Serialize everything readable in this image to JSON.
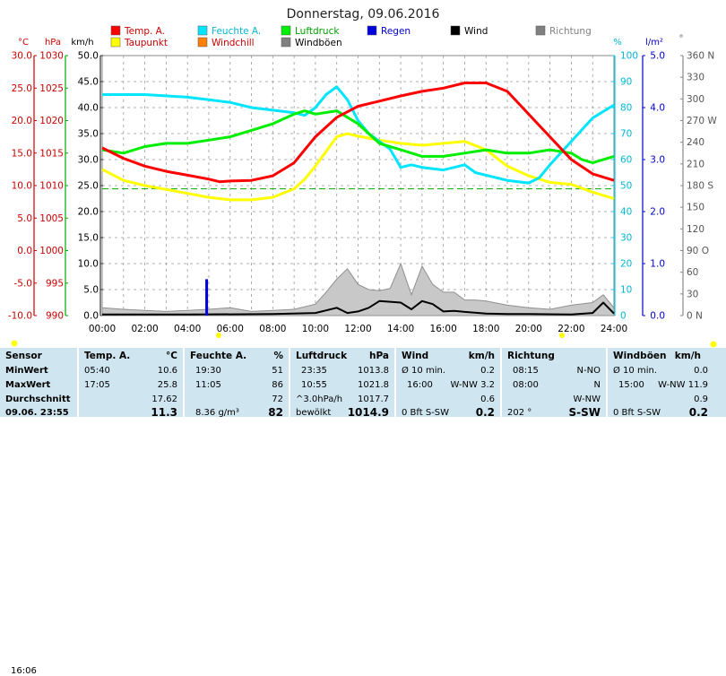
{
  "title": "Donnerstag, 09.06.2016",
  "now_time": "16:06",
  "legend": [
    {
      "label": "Temp. A.",
      "color": "#ff0000",
      "text_color": "#cc0000"
    },
    {
      "label": "Feuchte A.",
      "color": "#00e5ff",
      "text_color": "#00b8d4"
    },
    {
      "label": "Luftdruck",
      "color": "#00ee00",
      "text_color": "#00a000"
    },
    {
      "label": "Regen",
      "color": "#0000dd",
      "text_color": "#0000cc"
    },
    {
      "label": "Wind",
      "color": "#000000",
      "text_color": "#000000"
    },
    {
      "label": "Richtung",
      "color": "#808080",
      "text_color": "#808080"
    },
    {
      "label": "Taupunkt",
      "color": "#ffff00",
      "text_color": "#cc0000"
    },
    {
      "label": "Windchill",
      "color": "#ff8000",
      "text_color": "#cc0000"
    },
    {
      "label": "Windböen",
      "color": "#808080",
      "text_color": "#000000"
    }
  ],
  "unit_labels": {
    "temp": "°C",
    "pressure": "hPa",
    "wind": "km/h",
    "humidity": "%",
    "rain": "l/m²",
    "direction": "°"
  },
  "chart_data": {
    "type": "line",
    "x_ticks": [
      "00:00",
      "02:00",
      "04:00",
      "06:00",
      "08:00",
      "10:00",
      "12:00",
      "14:00",
      "16:00",
      "18:00",
      "20:00",
      "22:00",
      "24:00"
    ],
    "axes": {
      "temp": {
        "range": [
          -10,
          30
        ],
        "ticks": [
          "30.0",
          "25.0",
          "20.0",
          "15.0",
          "10.0",
          "5.0",
          "0.0",
          "-5.0",
          "-10.0"
        ]
      },
      "pressure": {
        "range": [
          990,
          1030
        ],
        "ticks": [
          "1030",
          "1025",
          "1020",
          "1015",
          "1010",
          "1005",
          "1000",
          "995",
          "990"
        ]
      },
      "wind": {
        "range": [
          0,
          50
        ],
        "ticks": [
          "50.0",
          "45.0",
          "40.0",
          "35.0",
          "30.0",
          "25.0",
          "20.0",
          "15.0",
          "10.0",
          "5.0",
          "0.0"
        ]
      },
      "humidity": {
        "range": [
          0,
          100
        ],
        "ticks": [
          "100",
          "90",
          "80",
          "70",
          "60",
          "50",
          "40",
          "30",
          "20",
          "10",
          "0"
        ]
      },
      "rain": {
        "range": [
          0,
          5
        ],
        "ticks": [
          "5.0",
          "4.0",
          "3.0",
          "2.0",
          "1.0",
          "0.0"
        ]
      },
      "direction": {
        "range": [
          0,
          360
        ],
        "ticks": [
          "360 N",
          "330",
          "300",
          "270 W",
          "240",
          "210",
          "180 S",
          "150",
          "120",
          "90 O",
          "60",
          "30",
          "0 N"
        ]
      }
    },
    "series": [
      {
        "name": "Temp. A.",
        "axis": "temp",
        "color": "#ff0000",
        "x": [
          0,
          1,
          2,
          3,
          4,
          5,
          5.5,
          6,
          7,
          8,
          9,
          10,
          11,
          12,
          13,
          14,
          15,
          16,
          17,
          18,
          19,
          20,
          21,
          22,
          23,
          24
        ],
        "y": [
          15.8,
          14.2,
          13.0,
          12.2,
          11.6,
          11.0,
          10.6,
          10.7,
          10.8,
          11.5,
          13.5,
          17.5,
          20.5,
          22.2,
          23.0,
          23.8,
          24.5,
          25.0,
          25.8,
          25.8,
          24.5,
          21.0,
          17.5,
          14.0,
          11.8,
          10.8
        ]
      },
      {
        "name": "Taupunkt",
        "axis": "temp",
        "color": "#ffff00",
        "x": [
          0,
          1,
          2,
          3,
          4,
          5,
          6,
          7,
          8,
          9,
          9.5,
          10,
          11,
          11.5,
          12,
          13,
          14,
          15,
          16,
          17,
          18,
          19,
          20,
          21,
          22,
          23,
          24
        ],
        "y": [
          12.5,
          10.8,
          10.0,
          9.4,
          8.8,
          8.2,
          7.8,
          7.8,
          8.2,
          9.5,
          11.0,
          13.0,
          17.5,
          18.0,
          17.6,
          17.0,
          16.5,
          16.2,
          16.5,
          16.8,
          15.5,
          13.0,
          11.5,
          10.5,
          10.2,
          9.0,
          8.0
        ]
      },
      {
        "name": "Feuchte A.",
        "axis": "humidity",
        "color": "#00e5ff",
        "x": [
          0,
          2,
          4,
          5,
          6,
          7,
          8,
          9,
          9.5,
          10,
          10.5,
          11,
          11.5,
          12,
          12.5,
          13,
          13.5,
          14,
          14.5,
          15,
          16,
          17,
          17.5,
          18,
          19,
          20,
          20.5,
          21,
          22,
          23,
          24
        ],
        "y": [
          85,
          85,
          84,
          83,
          82,
          80,
          79,
          78,
          77,
          80,
          85,
          88,
          83,
          75,
          70,
          67,
          64,
          57,
          58,
          57,
          56,
          58,
          55,
          54,
          52,
          51,
          53,
          58,
          67,
          76,
          81
        ]
      },
      {
        "name": "Luftdruck",
        "axis": "pressure",
        "color": "#00ee00",
        "x": [
          0,
          1,
          2,
          3,
          4,
          5,
          6,
          7,
          8,
          9,
          9.5,
          10,
          11,
          12,
          13,
          14,
          15,
          16,
          17,
          18,
          19,
          20,
          21,
          22,
          22.5,
          23,
          24
        ],
        "y": [
          1015.5,
          1015.0,
          1016.0,
          1016.5,
          1016.5,
          1017.0,
          1017.5,
          1018.5,
          1019.5,
          1021.0,
          1021.5,
          1021.0,
          1021.5,
          1019.5,
          1016.5,
          1015.5,
          1014.5,
          1014.5,
          1015.0,
          1015.5,
          1015.0,
          1015.0,
          1015.5,
          1015.0,
          1014.0,
          1013.5,
          1014.5
        ]
      },
      {
        "name": "Wind",
        "axis": "wind",
        "color": "#000000",
        "x": [
          0,
          4,
          8,
          10,
          11,
          11.5,
          12,
          12.5,
          13,
          14,
          14.5,
          15,
          15.5,
          16,
          16.5,
          17,
          18,
          19,
          20,
          22,
          23,
          23.5,
          24
        ],
        "y": [
          0.2,
          0.2,
          0.3,
          0.5,
          1.5,
          0.5,
          0.8,
          1.5,
          2.8,
          2.5,
          1.2,
          2.8,
          2.2,
          0.8,
          0.9,
          0.7,
          0.4,
          0.3,
          0.3,
          0.2,
          0.5,
          2.5,
          0.4
        ]
      },
      {
        "name": "Windböen",
        "axis": "wind",
        "color": "#808080",
        "x": [
          0,
          1,
          2,
          3,
          4,
          5,
          6,
          7,
          8,
          9,
          10,
          10.5,
          11,
          11.5,
          12,
          12.5,
          13,
          13.5,
          14,
          14.5,
          15,
          15.5,
          16,
          16.5,
          17,
          17.5,
          18,
          19,
          20,
          21,
          22,
          23,
          23.5,
          24
        ],
        "y": [
          1.5,
          1.2,
          1.0,
          0.8,
          1.0,
          1.2,
          1.5,
          0.8,
          1.0,
          1.2,
          2.2,
          4.5,
          7.0,
          9.0,
          6.0,
          5.0,
          4.8,
          5.2,
          10.0,
          4.0,
          9.5,
          6.0,
          4.5,
          4.5,
          3.0,
          3.0,
          2.8,
          2.0,
          1.5,
          1.2,
          2.0,
          2.5,
          4.0,
          1.5
        ]
      },
      {
        "name": "Regen",
        "axis": "rain",
        "color": "#0000dd",
        "x": [
          4.9
        ],
        "y": [
          0.7
        ]
      }
    ],
    "reference_line": {
      "axis": "temp",
      "value": 9.5,
      "color": "#00aa00"
    }
  },
  "table": {
    "sensor": {
      "header": "Sensor",
      "rows": [
        "MinWert",
        "MaxWert",
        "Durchschnitt",
        "09.06. 23:55"
      ]
    },
    "temp": {
      "header": "Temp. A.",
      "unit": "°C",
      "rows": [
        [
          "05:40",
          "10.6"
        ],
        [
          "17:05",
          "25.8"
        ],
        [
          "",
          "17.62"
        ],
        [
          "",
          "11.3"
        ]
      ]
    },
    "humidity": {
      "header": "Feuchte A.",
      "unit": "%",
      "rows": [
        [
          "19:30",
          "51"
        ],
        [
          "11:05",
          "86"
        ],
        [
          "",
          "72"
        ],
        [
          "8.36 g/m³",
          "82"
        ]
      ]
    },
    "pressure": {
      "header": "Luftdruck",
      "unit": "hPa",
      "rows": [
        [
          "23:35",
          "1013.8"
        ],
        [
          "10:55",
          "1021.8"
        ],
        [
          "^3.0hPa/h",
          "1017.7"
        ],
        [
          "bewölkt",
          "1014.9"
        ]
      ]
    },
    "wind": {
      "header": "Wind",
      "unit": "km/h",
      "rows": [
        [
          "Ø 10 min.",
          "0.2"
        ],
        [
          "16:00",
          "W-NW 3.2"
        ],
        [
          "",
          "0.6"
        ],
        [
          "0 Bft S-SW",
          "0.2"
        ]
      ]
    },
    "direction": {
      "header": "Richtung",
      "unit": "",
      "rows": [
        [
          "08:15",
          "N-NO"
        ],
        [
          "08:00",
          "N"
        ],
        [
          "",
          "W-NW"
        ],
        [
          "202 °",
          "S-SW"
        ]
      ]
    },
    "gusts": {
      "header": "Windböen",
      "unit": "km/h",
      "rows": [
        [
          "Ø 10 min.",
          "0.0"
        ],
        [
          "15:00",
          "W-NW 11.9"
        ],
        [
          "",
          "0.9"
        ],
        [
          "0 Bft S-SW",
          "0.2"
        ]
      ]
    }
  }
}
